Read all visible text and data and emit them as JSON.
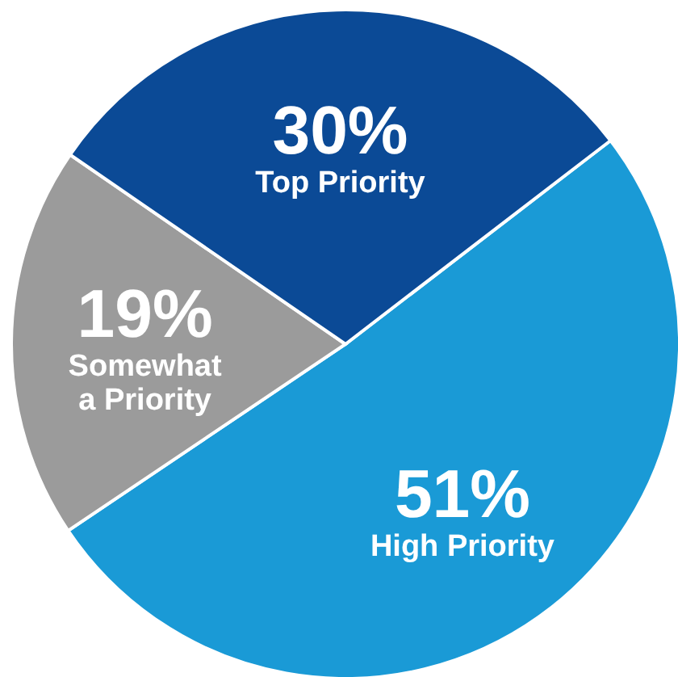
{
  "chart_data": {
    "type": "pie",
    "categories": [
      "High Priority",
      "Somewhat a Priority",
      "Top Priority"
    ],
    "values": [
      51,
      19,
      30
    ],
    "colors": [
      "#1a9ad6",
      "#9b9b9b",
      "#0b4a96"
    ],
    "value_labels": [
      "51%",
      "19%",
      "30%"
    ]
  }
}
